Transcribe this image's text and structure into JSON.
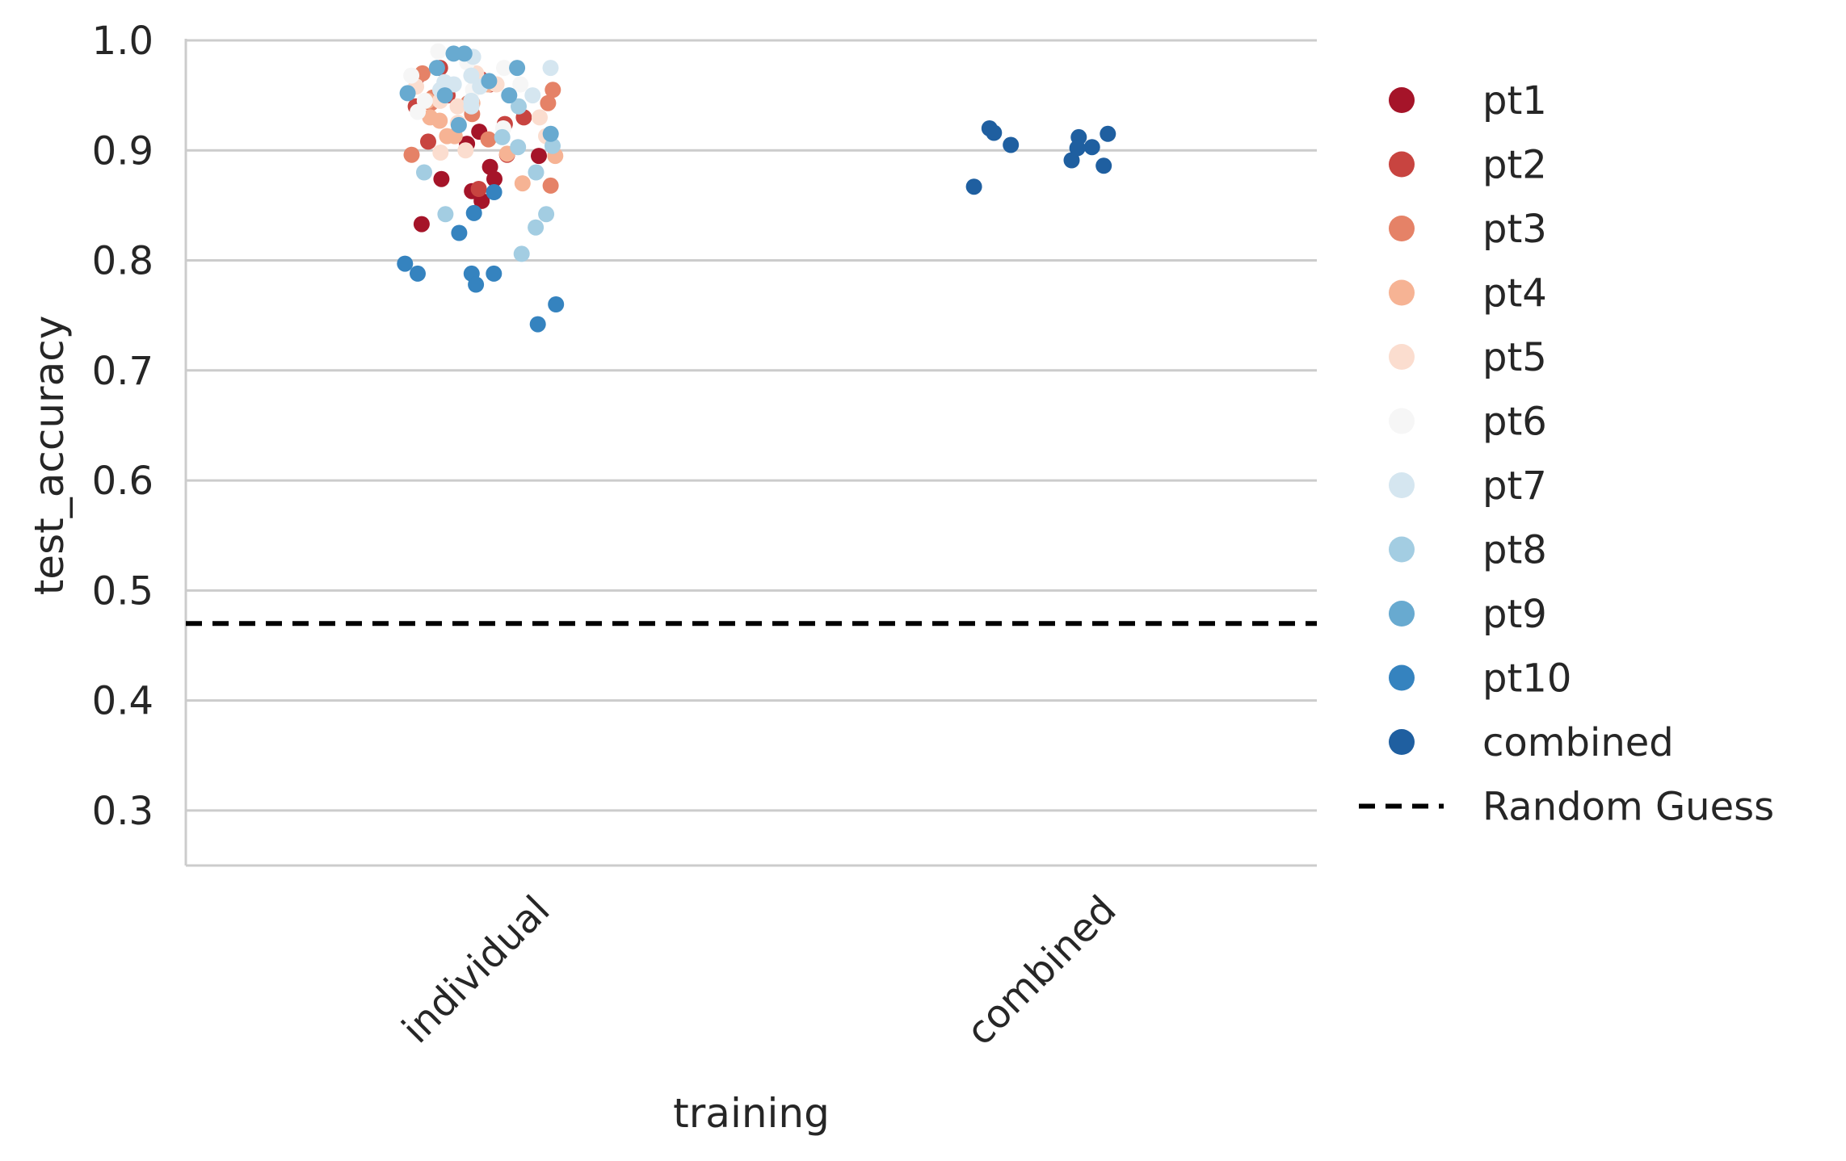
{
  "chart_data": {
    "type": "scatter",
    "subtype": "strip",
    "title": "",
    "xlabel": "training",
    "ylabel": "test_accuracy",
    "categories": [
      "individual",
      "combined"
    ],
    "ylim": [
      0.25,
      1.0
    ],
    "yticks": [
      0.3,
      0.4,
      0.5,
      0.6,
      0.7,
      0.8,
      0.9,
      1.0
    ],
    "ytick_labels": [
      "0.3",
      "0.4",
      "0.5",
      "0.6",
      "0.7",
      "0.8",
      "0.9",
      "1.0"
    ],
    "grid": "horizontal",
    "legend_position": "right, outside",
    "reference_line": {
      "name": "Random Guess",
      "y": 0.47,
      "style": "dashed",
      "color": "#000000"
    },
    "series": [
      {
        "name": "pt1",
        "color": "#a51429",
        "points": [
          {
            "category": "individual",
            "y": 0.917
          },
          {
            "category": "individual",
            "y": 0.885
          },
          {
            "category": "individual",
            "y": 0.833
          },
          {
            "category": "individual",
            "y": 0.874
          },
          {
            "category": "individual",
            "y": 0.863
          },
          {
            "category": "individual",
            "y": 0.854
          },
          {
            "category": "individual",
            "y": 0.965
          },
          {
            "category": "individual",
            "y": 0.895
          },
          {
            "category": "individual",
            "y": 0.874
          },
          {
            "category": "individual",
            "y": 0.906
          }
        ]
      },
      {
        "name": "pt2",
        "color": "#c84440",
        "points": [
          {
            "category": "individual",
            "y": 0.95
          },
          {
            "category": "individual",
            "y": 0.93
          },
          {
            "category": "individual",
            "y": 0.924
          },
          {
            "category": "individual",
            "y": 0.94
          },
          {
            "category": "individual",
            "y": 0.965
          },
          {
            "category": "individual",
            "y": 0.975
          },
          {
            "category": "individual",
            "y": 0.896
          },
          {
            "category": "individual",
            "y": 0.908
          },
          {
            "category": "individual",
            "y": 0.96
          },
          {
            "category": "individual",
            "y": 0.865
          }
        ]
      },
      {
        "name": "pt3",
        "color": "#e58267",
        "points": [
          {
            "category": "individual",
            "y": 0.943
          },
          {
            "category": "individual",
            "y": 0.896
          },
          {
            "category": "individual",
            "y": 0.943
          },
          {
            "category": "individual",
            "y": 0.955
          },
          {
            "category": "individual",
            "y": 0.97
          },
          {
            "category": "individual",
            "y": 0.933
          },
          {
            "category": "individual",
            "y": 0.868
          },
          {
            "category": "individual",
            "y": 0.948
          },
          {
            "category": "individual",
            "y": 0.943
          },
          {
            "category": "individual",
            "y": 0.91
          }
        ]
      },
      {
        "name": "pt4",
        "color": "#f6b394",
        "points": [
          {
            "category": "individual",
            "y": 0.897
          },
          {
            "category": "individual",
            "y": 0.913
          },
          {
            "category": "individual",
            "y": 0.93
          },
          {
            "category": "individual",
            "y": 0.895
          },
          {
            "category": "individual",
            "y": 0.943
          },
          {
            "category": "individual",
            "y": 0.927
          },
          {
            "category": "individual",
            "y": 0.96
          },
          {
            "category": "individual",
            "y": 0.913
          },
          {
            "category": "individual",
            "y": 0.945
          },
          {
            "category": "individual",
            "y": 0.87
          }
        ]
      },
      {
        "name": "pt5",
        "color": "#fbddcf",
        "points": [
          {
            "category": "individual",
            "y": 0.925
          },
          {
            "category": "individual",
            "y": 0.94
          },
          {
            "category": "individual",
            "y": 0.958
          },
          {
            "category": "individual",
            "y": 0.913
          },
          {
            "category": "individual",
            "y": 0.898
          },
          {
            "category": "individual",
            "y": 0.93
          },
          {
            "category": "individual",
            "y": 0.97
          },
          {
            "category": "individual",
            "y": 0.945
          },
          {
            "category": "individual",
            "y": 0.96
          },
          {
            "category": "individual",
            "y": 0.9
          }
        ]
      },
      {
        "name": "pt6",
        "color": "#f6f6f6",
        "points": [
          {
            "category": "individual",
            "y": 0.96
          },
          {
            "category": "individual",
            "y": 0.975
          },
          {
            "category": "individual",
            "y": 0.945
          },
          {
            "category": "individual",
            "y": 0.99
          },
          {
            "category": "individual",
            "y": 0.955
          },
          {
            "category": "individual",
            "y": 0.935
          },
          {
            "category": "individual",
            "y": 0.968
          },
          {
            "category": "individual",
            "y": 0.98
          },
          {
            "category": "individual",
            "y": 0.95
          },
          {
            "category": "individual",
            "y": 0.92
          }
        ]
      },
      {
        "name": "pt7",
        "color": "#d5e6f0",
        "points": [
          {
            "category": "individual",
            "y": 0.975
          },
          {
            "category": "individual",
            "y": 0.96
          },
          {
            "category": "individual",
            "y": 0.945
          },
          {
            "category": "individual",
            "y": 0.958
          },
          {
            "category": "individual",
            "y": 0.968
          },
          {
            "category": "individual",
            "y": 0.95
          },
          {
            "category": "individual",
            "y": 0.985
          },
          {
            "category": "individual",
            "y": 0.94
          },
          {
            "category": "individual",
            "y": 0.962
          },
          {
            "category": "individual",
            "y": 0.955
          }
        ]
      },
      {
        "name": "pt8",
        "color": "#a3cde2",
        "points": [
          {
            "category": "individual",
            "y": 0.903
          },
          {
            "category": "individual",
            "y": 0.88
          },
          {
            "category": "individual",
            "y": 0.842
          },
          {
            "category": "individual",
            "y": 0.806
          },
          {
            "category": "individual",
            "y": 0.83
          },
          {
            "category": "individual",
            "y": 0.904
          },
          {
            "category": "individual",
            "y": 0.842
          },
          {
            "category": "individual",
            "y": 0.88
          },
          {
            "category": "individual",
            "y": 0.94
          },
          {
            "category": "individual",
            "y": 0.912
          }
        ]
      },
      {
        "name": "pt9",
        "color": "#68aad0",
        "points": [
          {
            "category": "individual",
            "y": 0.963
          },
          {
            "category": "individual",
            "y": 0.952
          },
          {
            "category": "individual",
            "y": 0.988
          },
          {
            "category": "individual",
            "y": 0.923
          },
          {
            "category": "individual",
            "y": 0.975
          },
          {
            "category": "individual",
            "y": 0.988
          },
          {
            "category": "individual",
            "y": 0.95
          },
          {
            "category": "individual",
            "y": 0.975
          },
          {
            "category": "individual",
            "y": 0.95
          },
          {
            "category": "individual",
            "y": 0.915
          }
        ]
      },
      {
        "name": "pt10",
        "color": "#3583bf",
        "points": [
          {
            "category": "individual",
            "y": 0.797
          },
          {
            "category": "individual",
            "y": 0.825
          },
          {
            "category": "individual",
            "y": 0.788
          },
          {
            "category": "individual",
            "y": 0.788
          },
          {
            "category": "individual",
            "y": 0.788
          },
          {
            "category": "individual",
            "y": 0.76
          },
          {
            "category": "individual",
            "y": 0.843
          },
          {
            "category": "individual",
            "y": 0.742
          },
          {
            "category": "individual",
            "y": 0.862
          },
          {
            "category": "individual",
            "y": 0.778
          }
        ]
      },
      {
        "name": "combined",
        "color": "#1f5fa0",
        "points": [
          {
            "category": "combined",
            "y": 0.92
          },
          {
            "category": "combined",
            "y": 0.903
          },
          {
            "category": "combined",
            "y": 0.915
          },
          {
            "category": "combined",
            "y": 0.905
          },
          {
            "category": "combined",
            "y": 0.867
          },
          {
            "category": "combined",
            "y": 0.916
          },
          {
            "category": "combined",
            "y": 0.912
          },
          {
            "category": "combined",
            "y": 0.902
          },
          {
            "category": "combined",
            "y": 0.891
          },
          {
            "category": "combined",
            "y": 0.886
          }
        ]
      }
    ]
  }
}
